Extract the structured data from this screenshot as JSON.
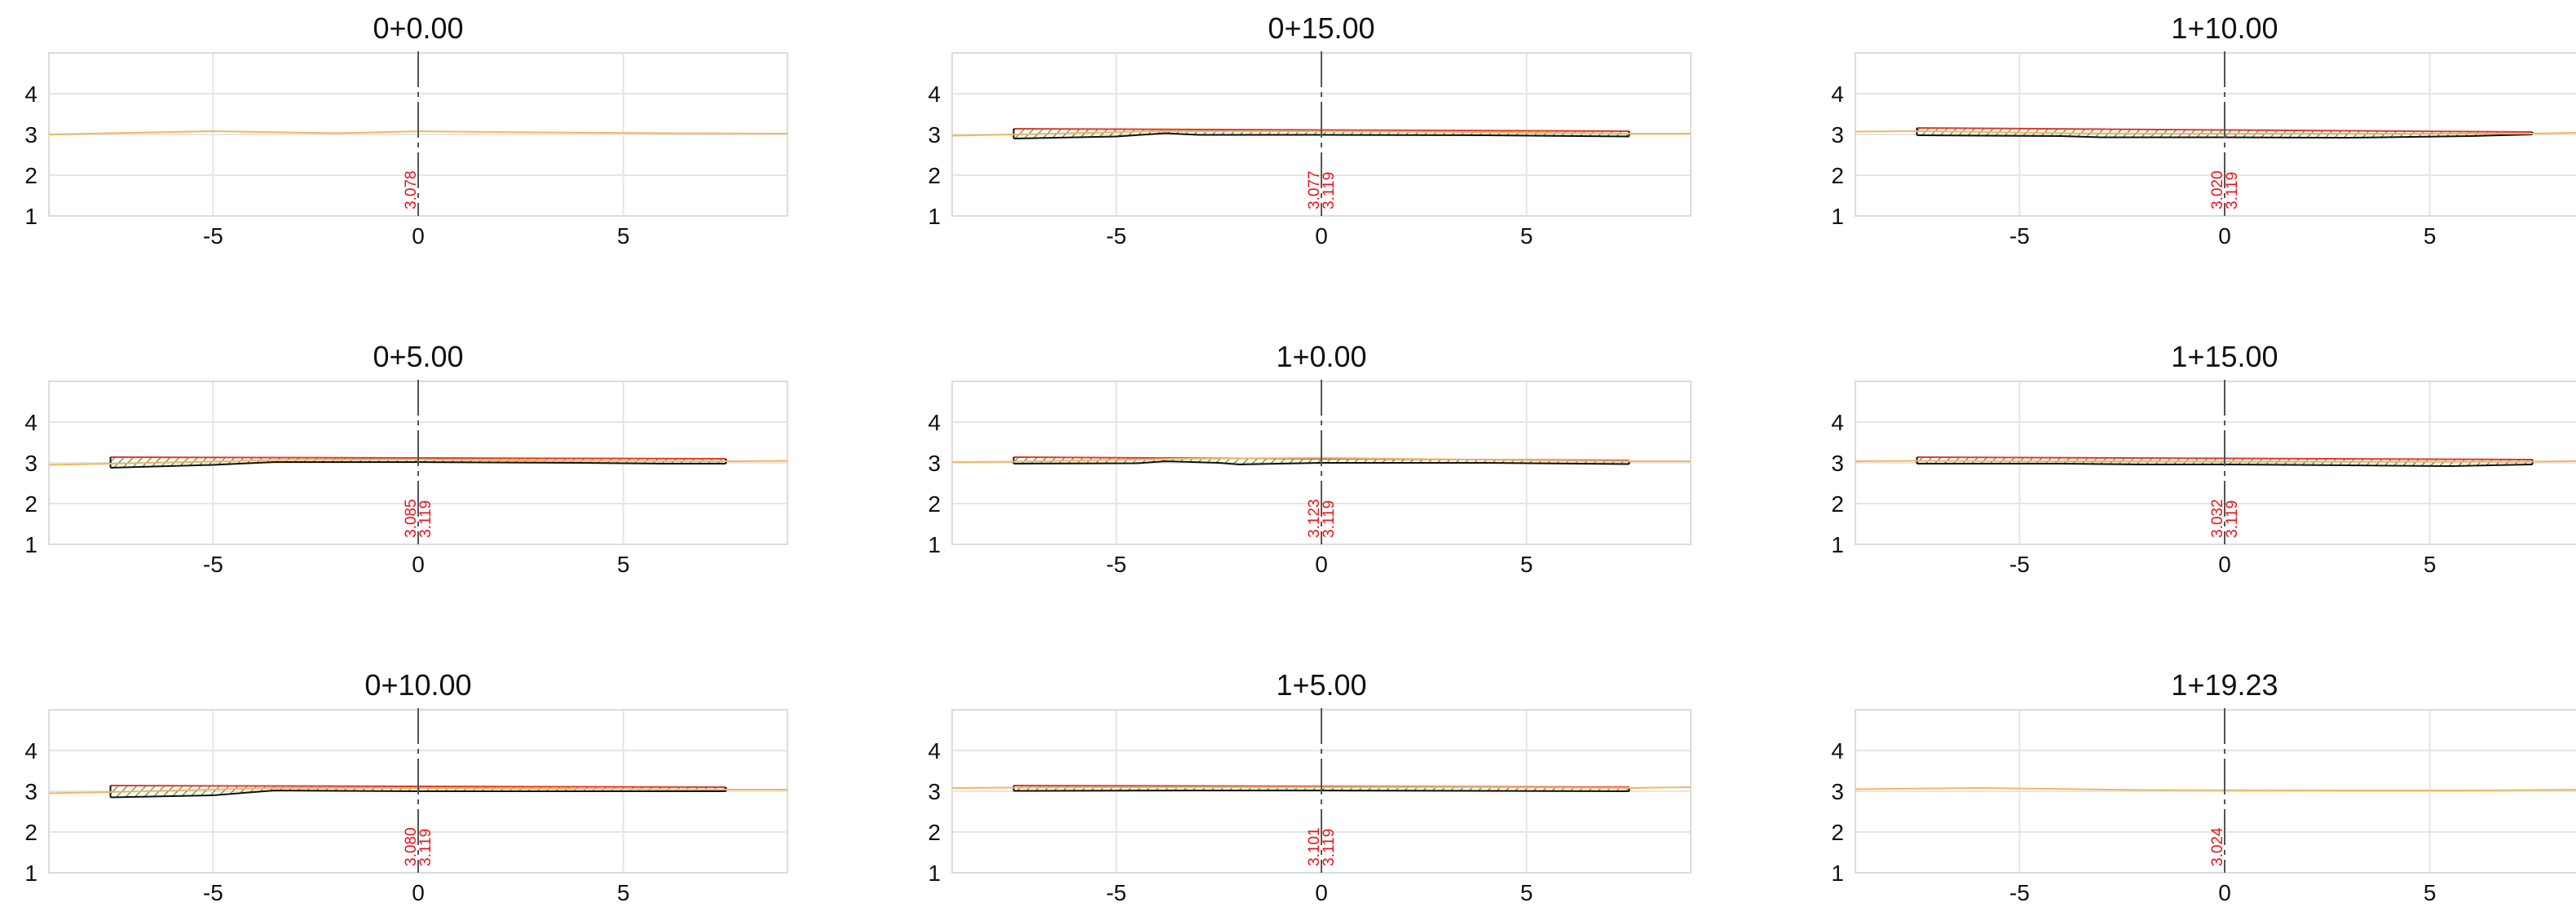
{
  "colors": {
    "ground": "#f2b75c",
    "design_top": "#e03a2e",
    "design_bottom": "#2e8b3a",
    "hatch": "#2e8b3a",
    "centerline": "#555555",
    "elevation_text": "#e8141a",
    "grid": "#e6e6e6"
  },
  "chart_data": [
    {
      "type": "line",
      "title": "0+0.00",
      "xlim": [
        -9,
        9
      ],
      "ylim": [
        1,
        5
      ],
      "xticks": [
        -5,
        0,
        5
      ],
      "yticks": [
        1,
        2,
        3,
        4
      ],
      "grid": true,
      "ground": {
        "x": [
          -9,
          -5,
          -2,
          0,
          3,
          6,
          9
        ],
        "y": [
          3.0,
          3.08,
          3.03,
          3.078,
          3.05,
          3.03,
          3.02
        ]
      },
      "design": null,
      "elevations": [
        "3.078"
      ]
    },
    {
      "type": "line",
      "title": "0+5.00",
      "xlim": [
        -9,
        9
      ],
      "ylim": [
        1,
        5
      ],
      "xticks": [
        -5,
        0,
        5
      ],
      "yticks": [
        1,
        2,
        3,
        4
      ],
      "grid": true,
      "ground": {
        "x": [
          -9,
          -7.5,
          -3.5,
          0,
          3.5,
          7.5,
          9
        ],
        "y": [
          2.95,
          2.98,
          3.07,
          3.085,
          3.05,
          3.04,
          3.05
        ]
      },
      "design": {
        "x": [
          -7.5,
          7.5
        ],
        "top": [
          3.14,
          3.1
        ],
        "bottom": {
          "x": [
            -7.5,
            -5,
            -3.5,
            0,
            4,
            6,
            7.5
          ],
          "y": [
            2.88,
            2.95,
            3.02,
            3.02,
            3.0,
            2.98,
            2.98
          ]
        }
      },
      "elevations": [
        "3.085",
        "3.119"
      ]
    },
    {
      "type": "line",
      "title": "0+10.00",
      "xlim": [
        -9,
        9
      ],
      "ylim": [
        1,
        5
      ],
      "xticks": [
        -5,
        0,
        5
      ],
      "yticks": [
        1,
        2,
        3,
        4
      ],
      "grid": true,
      "ground": {
        "x": [
          -9,
          -7.5,
          -3.5,
          0,
          3.5,
          7.5,
          9
        ],
        "y": [
          2.95,
          2.98,
          3.08,
          3.08,
          3.06,
          3.04,
          3.04
        ]
      },
      "design": {
        "x": [
          -7.5,
          7.5
        ],
        "top": [
          3.14,
          3.1
        ],
        "bottom": {
          "x": [
            -7.5,
            -5,
            -3.5,
            0,
            4,
            6,
            7.5
          ],
          "y": [
            2.85,
            2.9,
            3.02,
            3.0,
            3.0,
            3.0,
            3.0
          ]
        }
      },
      "elevations": [
        "3.080",
        "3.119"
      ]
    },
    {
      "type": "line",
      "title": "0+15.00",
      "xlim": [
        -9,
        9
      ],
      "ylim": [
        1,
        5
      ],
      "xticks": [
        -5,
        0,
        5
      ],
      "yticks": [
        1,
        2,
        3,
        4
      ],
      "grid": true,
      "ground": {
        "x": [
          -9,
          -7.5,
          -4,
          0,
          3.5,
          7.5,
          9
        ],
        "y": [
          2.97,
          3.0,
          3.08,
          3.077,
          3.06,
          3.02,
          3.02
        ]
      },
      "design": {
        "x": [
          -7.5,
          7.5
        ],
        "top": [
          3.14,
          3.08
        ],
        "bottom": {
          "x": [
            -7.5,
            -5,
            -3.8,
            -3,
            0,
            4,
            7.5
          ],
          "y": [
            2.9,
            2.95,
            3.03,
            2.99,
            2.99,
            2.98,
            2.95
          ]
        }
      },
      "elevations": [
        "3.077",
        "3.119"
      ]
    },
    {
      "type": "line",
      "title": "1+0.00",
      "xlim": [
        -9,
        9
      ],
      "ylim": [
        1,
        5
      ],
      "xticks": [
        -5,
        0,
        5
      ],
      "yticks": [
        1,
        2,
        3,
        4
      ],
      "grid": true,
      "ground": {
        "x": [
          -9,
          -7.5,
          -3.5,
          0,
          3.5,
          7.5,
          9
        ],
        "y": [
          3.02,
          3.03,
          3.1,
          3.123,
          3.08,
          3.04,
          3.04
        ]
      },
      "design": {
        "x": [
          -7.5,
          7.5
        ],
        "top": [
          3.14,
          3.06
        ],
        "bottom": {
          "x": [
            -7.5,
            -4.5,
            -3.8,
            -2.5,
            -2,
            0,
            4,
            7.5
          ],
          "y": [
            2.98,
            2.99,
            3.04,
            3.0,
            2.96,
            3.0,
            3.0,
            2.97
          ]
        }
      },
      "elevations": [
        "3.123",
        "3.119"
      ]
    },
    {
      "type": "line",
      "title": "1+5.00",
      "xlim": [
        -9,
        9
      ],
      "ylim": [
        1,
        5
      ],
      "xticks": [
        -5,
        0,
        5
      ],
      "yticks": [
        1,
        2,
        3,
        4
      ],
      "grid": true,
      "ground": {
        "x": [
          -9,
          -7.5,
          -3,
          0,
          3.5,
          7.5,
          9
        ],
        "y": [
          3.08,
          3.09,
          3.1,
          3.101,
          3.1,
          3.08,
          3.1
        ]
      },
      "design": {
        "x": [
          -7.5,
          7.5
        ],
        "top": [
          3.14,
          3.1
        ],
        "bottom": {
          "x": [
            -7.5,
            -3,
            0,
            4,
            7.5
          ],
          "y": [
            3.01,
            3.02,
            3.02,
            3.01,
            3.0
          ]
        }
      },
      "elevations": [
        "3.101",
        "3.119"
      ]
    },
    {
      "type": "line",
      "title": "1+10.00",
      "xlim": [
        -9,
        9
      ],
      "ylim": [
        1,
        5
      ],
      "xticks": [
        -5,
        0,
        5
      ],
      "yticks": [
        1,
        2,
        3,
        4
      ],
      "grid": true,
      "ground": {
        "x": [
          -9,
          -7.5,
          -3.5,
          0,
          3.5,
          7.5,
          9
        ],
        "y": [
          3.07,
          3.08,
          3.03,
          3.02,
          3.02,
          3.02,
          3.05
        ]
      },
      "design": {
        "x": [
          -7.5,
          7.5
        ],
        "top": [
          3.16,
          3.06
        ],
        "bottom": {
          "x": [
            -7.5,
            -4,
            -3,
            0,
            3,
            6,
            7.5
          ],
          "y": [
            2.98,
            2.96,
            2.93,
            2.93,
            2.92,
            2.96,
            3.0
          ]
        }
      },
      "elevations": [
        "3.020",
        "3.119"
      ]
    },
    {
      "type": "line",
      "title": "1+15.00",
      "xlim": [
        -9,
        9
      ],
      "ylim": [
        1,
        5
      ],
      "xticks": [
        -5,
        0,
        5
      ],
      "yticks": [
        1,
        2,
        3,
        4
      ],
      "grid": true,
      "ground": {
        "x": [
          -9,
          -7.5,
          -3.5,
          0,
          3.5,
          7.5,
          9
        ],
        "y": [
          3.04,
          3.05,
          3.04,
          3.032,
          3.03,
          3.03,
          3.05
        ]
      },
      "design": {
        "x": [
          -7.5,
          7.5
        ],
        "top": [
          3.14,
          3.08
        ],
        "bottom": {
          "x": [
            -7.5,
            -4,
            -2,
            0,
            3,
            5.5,
            7.5
          ],
          "y": [
            2.98,
            2.98,
            2.96,
            2.96,
            2.94,
            2.92,
            2.96
          ]
        }
      },
      "elevations": [
        "3.032",
        "3.119"
      ]
    },
    {
      "type": "line",
      "title": "1+19.23",
      "xlim": [
        -9,
        9
      ],
      "ylim": [
        1,
        5
      ],
      "xticks": [
        -5,
        0,
        5
      ],
      "yticks": [
        1,
        2,
        3,
        4
      ],
      "grid": true,
      "ground": {
        "x": [
          -9,
          -6,
          -2,
          0,
          3,
          6,
          9
        ],
        "y": [
          3.05,
          3.08,
          3.03,
          3.024,
          3.02,
          3.02,
          3.04
        ]
      },
      "design": null,
      "elevations": [
        "3.024"
      ]
    }
  ]
}
